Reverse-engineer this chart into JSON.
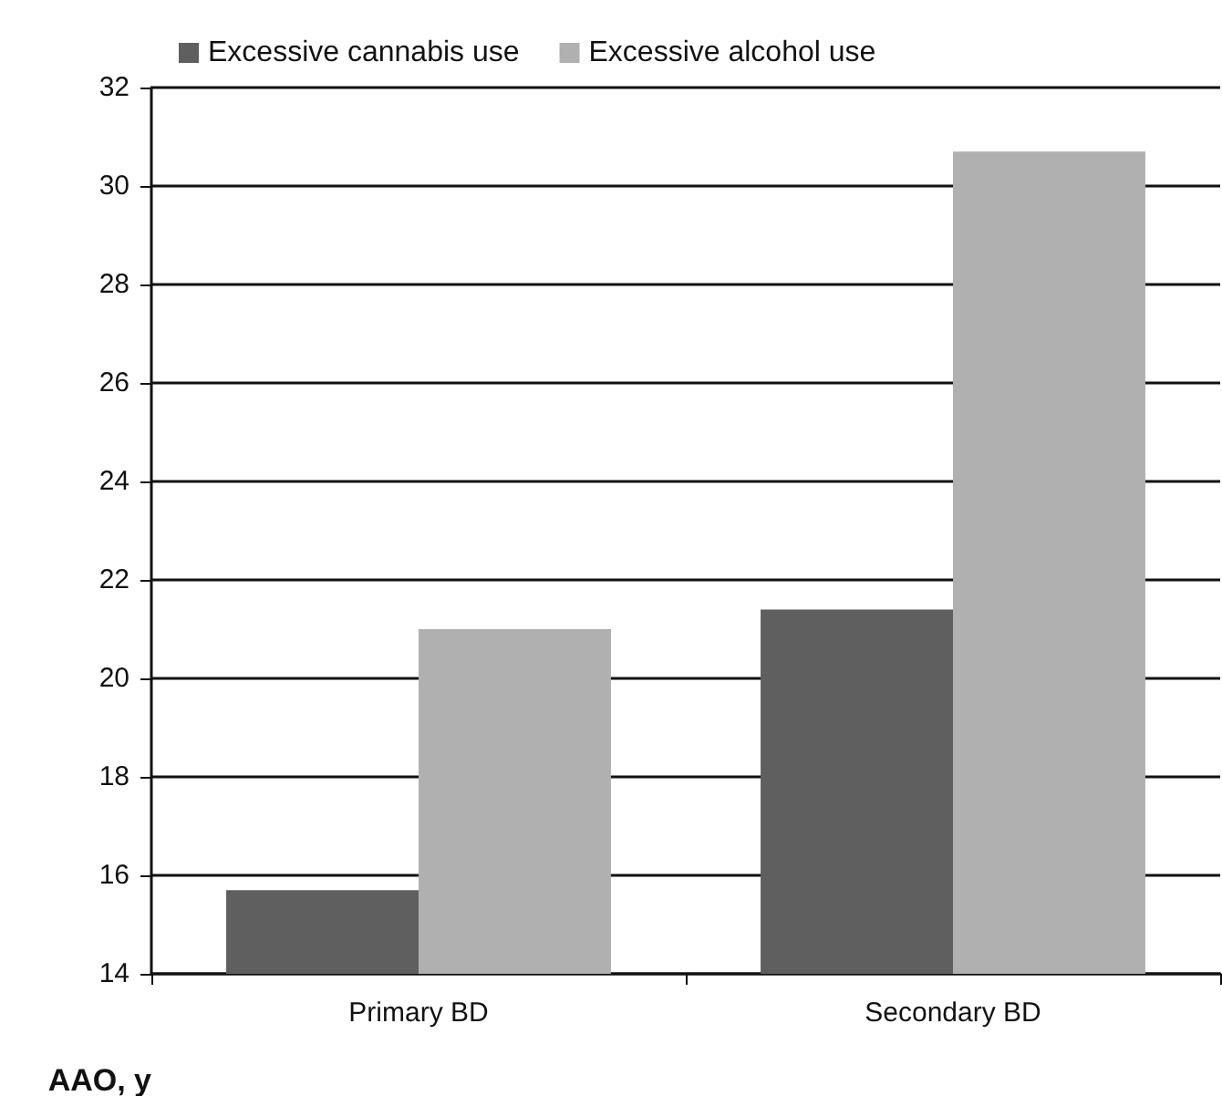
{
  "chart_data": {
    "type": "bar",
    "ylabel": "AAO, y",
    "categories": [
      "Primary BD",
      "Secondary BD"
    ],
    "series": [
      {
        "name": "Excessive cannabis use",
        "color": "#5f5f5f",
        "values": [
          15.7,
          21.4
        ]
      },
      {
        "name": "Excessive alcohol use",
        "color": "#b0b0b0",
        "values": [
          21.0,
          30.7
        ]
      }
    ],
    "ylim": [
      14,
      32
    ],
    "yticks": [
      14,
      16,
      18,
      20,
      22,
      24,
      26,
      28,
      30,
      32
    ],
    "grid": "y",
    "legend": "top left"
  }
}
